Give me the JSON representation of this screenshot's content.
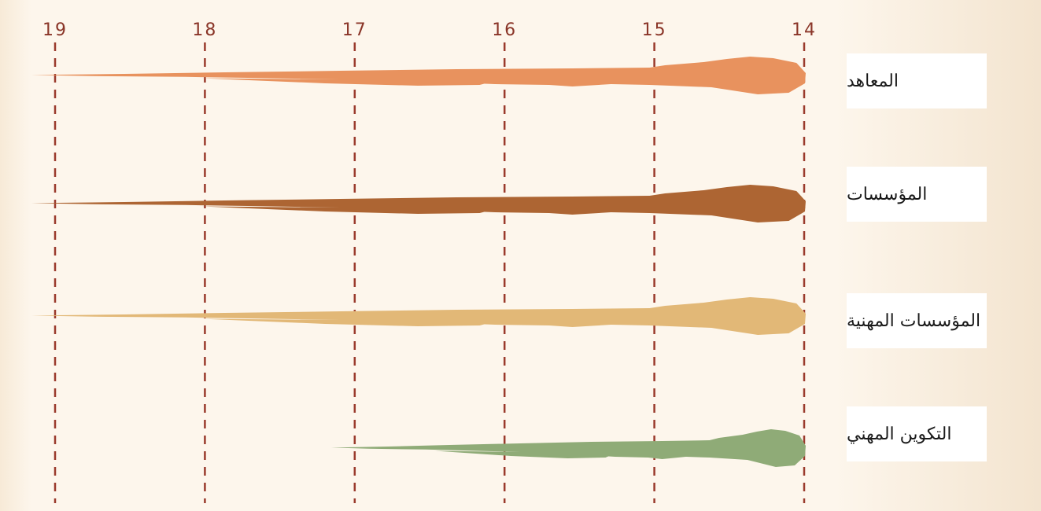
{
  "chart_data": {
    "type": "bar",
    "orientation": "horizontal",
    "x_axis_direction": "right-to-left",
    "xlim": [
      14,
      19
    ],
    "ticks": [
      "14",
      "15",
      "16",
      "17",
      "18",
      "19"
    ],
    "tick_values": [
      14,
      15,
      16,
      17,
      18,
      19
    ],
    "gridlines": "dashed vertical",
    "categories": [
      "المعاهد",
      "المؤسسات",
      "المؤسسات المهنية",
      "التكوين المهني"
    ],
    "series": [
      {
        "values": [
          19,
          19,
          19,
          17
        ],
        "colors": [
          "#e8925e",
          "#ad6533",
          "#e2b877",
          "#8fab77"
        ]
      }
    ]
  },
  "colors": {
    "gridline": "#9a3a2c",
    "tick_text": "#8a3528",
    "background": "#fdf6ec"
  }
}
